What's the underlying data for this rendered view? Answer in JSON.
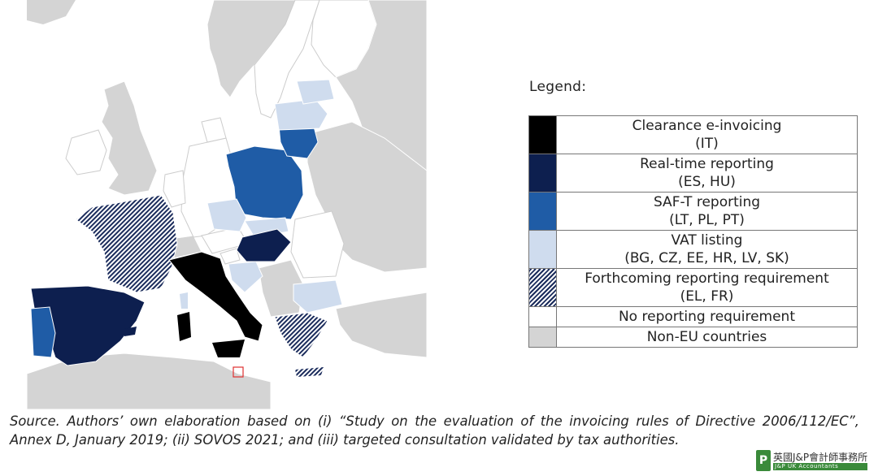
{
  "map": {
    "colors": {
      "non_eu": "#d4d4d4",
      "no_requirement": "#ffffff",
      "vat_listing": "#cfdcee",
      "saft": "#1f5ca6",
      "realtime": "#0d1f4f",
      "clearance": "#000000",
      "forthcoming_hatch": "#1b2c5c",
      "malta_marker": "#e03030"
    }
  },
  "legend": {
    "title": "Legend:",
    "items": [
      {
        "line1": "Clearance e-invoicing",
        "line2": "(IT)"
      },
      {
        "line1": "Real-time reporting",
        "line2": "(ES, HU)"
      },
      {
        "line1": "SAF-T reporting",
        "line2": "(LT, PL, PT)"
      },
      {
        "line1": "VAT listing",
        "line2": "(BG, CZ, EE, HR, LV, SK)"
      },
      {
        "line1": "Forthcoming reporting requirement",
        "line2": "(EL, FR)"
      },
      {
        "line1": "No reporting requirement"
      },
      {
        "line1": "Non-EU countries"
      }
    ]
  },
  "source": "Source. Authors’ own elaboration based on (i) “Study on the evaluation of the invoicing rules of Directive 2006/112/EC”, Annex D, January 2019; (ii) SOVOS 2021; and (iii) targeted consultation validated by tax authorities.",
  "logo": {
    "mark": "P",
    "name": "英國J&P會計師事務所",
    "tagline": "J&P UK Accountants"
  }
}
